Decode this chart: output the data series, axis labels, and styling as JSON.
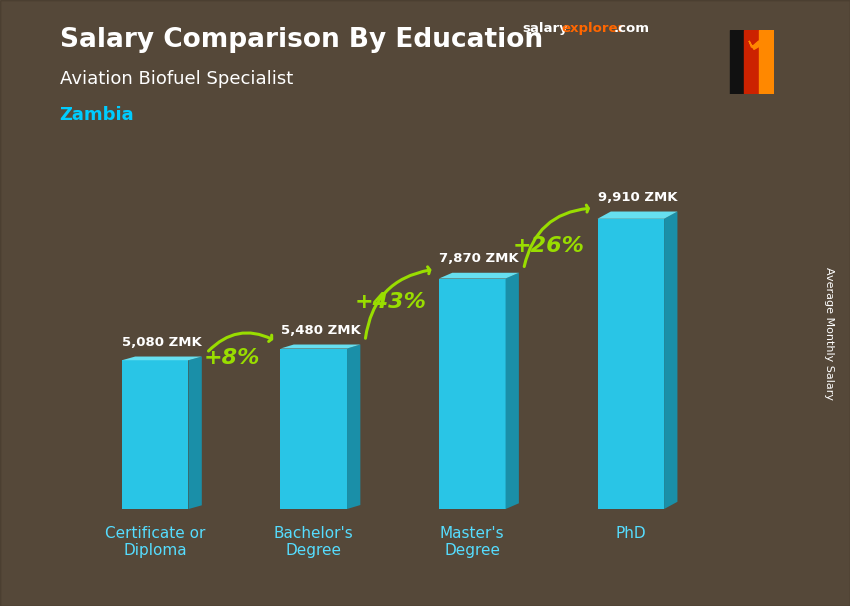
{
  "title": "Salary Comparison By Education",
  "subtitle": "Aviation Biofuel Specialist",
  "country": "Zambia",
  "categories": [
    "Certificate or\nDiploma",
    "Bachelor's\nDegree",
    "Master's\nDegree",
    "PhD"
  ],
  "values": [
    5080,
    5480,
    7870,
    9910
  ],
  "labels": [
    "5,080 ZMK",
    "5,480 ZMK",
    "7,870 ZMK",
    "9,910 ZMK"
  ],
  "pct_changes": [
    "+8%",
    "+43%",
    "+26%"
  ],
  "bar_color_front": "#29c5e6",
  "bar_color_top": "#66dff0",
  "bar_color_side": "#1a8fa8",
  "arrow_color": "#99dd00",
  "title_color": "#ffffff",
  "subtitle_color": "#ffffff",
  "country_color": "#00ccff",
  "label_color": "#ffffff",
  "pct_color": "#99dd00",
  "bg_color": "#7a6a58",
  "watermark_salary": "salary",
  "watermark_explorer": "explorer",
  "watermark_com": ".com",
  "watermark_salary_color": "#ffffff",
  "watermark_explorer_color": "#ff6600",
  "watermark_com_color": "#ffffff",
  "ylabel": "Average Monthly Salary",
  "ylim": [
    0,
    12000
  ]
}
